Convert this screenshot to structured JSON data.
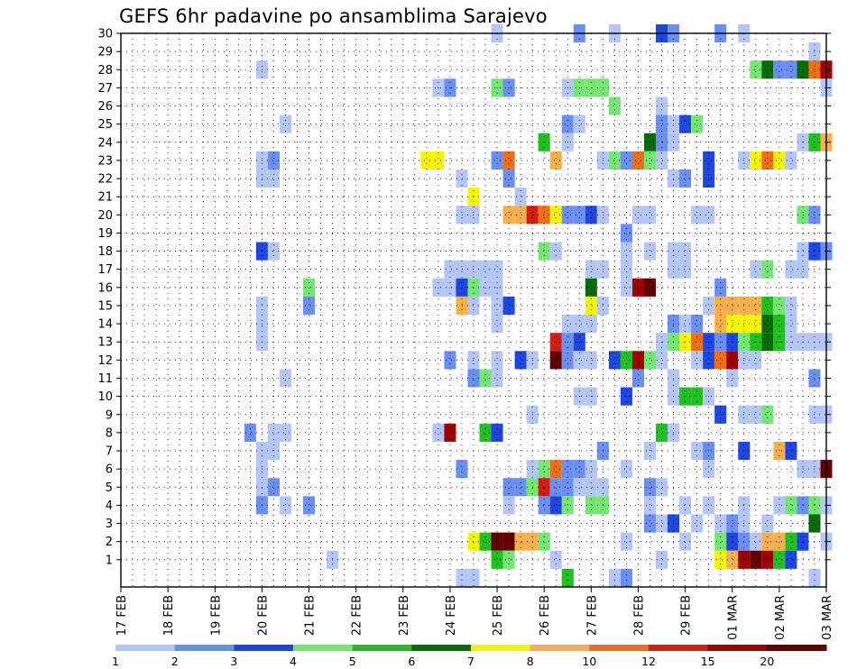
{
  "chart_data": {
    "type": "heatmap",
    "title": "GEFS 6hr padavine po ansamblima Sarajevo",
    "xlabel": "",
    "ylabel": "",
    "x_axis": {
      "label_every": 4,
      "n_steps": 61,
      "ticks": [
        "17 FEB",
        "18 FEB",
        "19 FEB",
        "20 FEB",
        "21 FEB",
        "22 FEB",
        "23 FEB",
        "24 FEB",
        "25 FEB",
        "26 FEB",
        "27 FEB",
        "28 FEB",
        "29 FEB",
        "01 MAR",
        "02 MAR",
        "03 MAR"
      ]
    },
    "y_axis": {
      "range": [
        0,
        30
      ],
      "ticks": [
        1,
        2,
        3,
        4,
        5,
        6,
        7,
        8,
        9,
        10,
        11,
        12,
        13,
        14,
        15,
        16,
        17,
        18,
        19,
        20,
        21,
        22,
        23,
        24,
        25,
        26,
        27,
        28,
        29,
        30
      ]
    },
    "grid": true,
    "legend": {
      "placement": "bottom",
      "bins": [
        {
          "color": "#b4c6f8",
          "label": "1"
        },
        {
          "color": "#6b8ef2",
          "label": "2"
        },
        {
          "color": "#1e46e0",
          "label": "3"
        },
        {
          "color": "#73e673",
          "label": "4"
        },
        {
          "color": "#1fc01f",
          "label": "5"
        },
        {
          "color": "#0a6b0a",
          "label": "6"
        },
        {
          "color": "#f5f500",
          "label": "7"
        },
        {
          "color": "#fab04a",
          "label": "8"
        },
        {
          "color": "#f06e14",
          "label": "10"
        },
        {
          "color": "#d21e14",
          "label": "12"
        },
        {
          "color": "#a00000",
          "label": "15"
        },
        {
          "color": "#650000",
          "label": "20"
        }
      ]
    },
    "cells": [
      [
        30,
        32,
        1
      ],
      [
        30,
        39,
        2
      ],
      [
        30,
        42,
        1
      ],
      [
        30,
        46,
        3
      ],
      [
        30,
        47,
        2
      ],
      [
        30,
        51,
        2
      ],
      [
        30,
        53,
        1
      ],
      [
        29,
        59,
        1
      ],
      [
        28,
        12,
        1
      ],
      [
        28,
        54,
        4
      ],
      [
        28,
        55,
        6
      ],
      [
        28,
        56,
        2
      ],
      [
        28,
        57,
        2
      ],
      [
        28,
        58,
        6
      ],
      [
        28,
        59,
        9
      ],
      [
        28,
        60,
        11
      ],
      [
        27,
        27,
        1
      ],
      [
        27,
        28,
        2
      ],
      [
        27,
        32,
        4
      ],
      [
        27,
        33,
        2
      ],
      [
        27,
        38,
        1
      ],
      [
        27,
        39,
        4
      ],
      [
        27,
        40,
        4
      ],
      [
        27,
        41,
        4
      ],
      [
        27,
        60,
        1
      ],
      [
        26,
        42,
        4
      ],
      [
        26,
        46,
        1
      ],
      [
        25,
        14,
        1
      ],
      [
        25,
        38,
        2
      ],
      [
        25,
        39,
        1
      ],
      [
        25,
        46,
        2
      ],
      [
        25,
        47,
        1
      ],
      [
        25,
        48,
        3
      ],
      [
        25,
        49,
        4
      ],
      [
        24,
        36,
        5
      ],
      [
        24,
        38,
        1
      ],
      [
        24,
        45,
        6
      ],
      [
        24,
        46,
        2
      ],
      [
        24,
        47,
        1
      ],
      [
        24,
        58,
        1
      ],
      [
        24,
        59,
        5
      ],
      [
        24,
        60,
        8
      ],
      [
        23,
        12,
        1
      ],
      [
        23,
        13,
        2
      ],
      [
        23,
        26,
        7
      ],
      [
        23,
        27,
        7
      ],
      [
        23,
        32,
        2
      ],
      [
        23,
        33,
        9
      ],
      [
        23,
        37,
        8
      ],
      [
        23,
        41,
        1
      ],
      [
        23,
        42,
        4
      ],
      [
        23,
        43,
        2
      ],
      [
        23,
        44,
        9
      ],
      [
        23,
        45,
        4
      ],
      [
        23,
        46,
        1
      ],
      [
        23,
        50,
        3
      ],
      [
        23,
        53,
        1
      ],
      [
        23,
        54,
        7
      ],
      [
        23,
        55,
        9
      ],
      [
        23,
        56,
        7
      ],
      [
        23,
        57,
        1
      ],
      [
        22,
        12,
        1
      ],
      [
        22,
        13,
        1
      ],
      [
        22,
        29,
        1
      ],
      [
        22,
        33,
        2
      ],
      [
        22,
        47,
        1
      ],
      [
        22,
        48,
        2
      ],
      [
        22,
        50,
        3
      ],
      [
        21,
        30,
        7
      ],
      [
        21,
        34,
        1
      ],
      [
        20,
        29,
        1
      ],
      [
        20,
        30,
        1
      ],
      [
        20,
        33,
        8
      ],
      [
        20,
        34,
        8
      ],
      [
        20,
        35,
        10
      ],
      [
        20,
        36,
        9
      ],
      [
        20,
        37,
        7
      ],
      [
        20,
        38,
        2
      ],
      [
        20,
        39,
        2
      ],
      [
        20,
        40,
        3
      ],
      [
        20,
        41,
        1
      ],
      [
        20,
        44,
        1
      ],
      [
        20,
        45,
        1
      ],
      [
        20,
        49,
        1
      ],
      [
        20,
        50,
        1
      ],
      [
        20,
        58,
        4
      ],
      [
        20,
        59,
        2
      ],
      [
        19,
        43,
        2
      ],
      [
        18,
        12,
        3
      ],
      [
        18,
        13,
        1
      ],
      [
        18,
        36,
        4
      ],
      [
        18,
        37,
        1
      ],
      [
        18,
        43,
        1
      ],
      [
        18,
        45,
        1
      ],
      [
        18,
        47,
        1
      ],
      [
        18,
        48,
        1
      ],
      [
        18,
        58,
        1
      ],
      [
        18,
        59,
        3
      ],
      [
        18,
        60,
        2
      ],
      [
        17,
        28,
        1
      ],
      [
        17,
        29,
        1
      ],
      [
        17,
        30,
        1
      ],
      [
        17,
        31,
        1
      ],
      [
        17,
        32,
        1
      ],
      [
        17,
        40,
        1
      ],
      [
        17,
        41,
        1
      ],
      [
        17,
        43,
        1
      ],
      [
        17,
        47,
        1
      ],
      [
        17,
        48,
        1
      ],
      [
        17,
        54,
        1
      ],
      [
        17,
        55,
        4
      ],
      [
        17,
        57,
        1
      ],
      [
        17,
        58,
        1
      ],
      [
        16,
        16,
        4
      ],
      [
        16,
        27,
        1
      ],
      [
        16,
        28,
        1
      ],
      [
        16,
        29,
        3
      ],
      [
        16,
        30,
        4
      ],
      [
        16,
        31,
        1
      ],
      [
        16,
        32,
        1
      ],
      [
        16,
        40,
        6
      ],
      [
        16,
        43,
        1
      ],
      [
        16,
        44,
        11
      ],
      [
        16,
        45,
        12
      ],
      [
        16,
        51,
        2
      ],
      [
        15,
        16,
        2
      ],
      [
        15,
        12,
        1
      ],
      [
        15,
        29,
        8
      ],
      [
        15,
        30,
        1
      ],
      [
        15,
        32,
        1
      ],
      [
        15,
        33,
        3
      ],
      [
        15,
        40,
        7
      ],
      [
        15,
        41,
        1
      ],
      [
        15,
        50,
        1
      ],
      [
        15,
        51,
        8
      ],
      [
        15,
        52,
        8
      ],
      [
        15,
        53,
        8
      ],
      [
        15,
        54,
        8
      ],
      [
        15,
        55,
        5
      ],
      [
        15,
        56,
        4
      ],
      [
        15,
        57,
        1
      ],
      [
        14,
        12,
        1
      ],
      [
        14,
        32,
        1
      ],
      [
        14,
        38,
        1
      ],
      [
        14,
        39,
        1
      ],
      [
        14,
        40,
        1
      ],
      [
        14,
        47,
        2
      ],
      [
        14,
        48,
        1
      ],
      [
        14,
        49,
        2
      ],
      [
        14,
        51,
        8
      ],
      [
        14,
        52,
        7
      ],
      [
        14,
        53,
        7
      ],
      [
        14,
        54,
        7
      ],
      [
        14,
        55,
        6
      ],
      [
        14,
        56,
        5
      ],
      [
        14,
        57,
        1
      ],
      [
        13,
        12,
        1
      ],
      [
        13,
        37,
        10
      ],
      [
        13,
        38,
        2
      ],
      [
        13,
        39,
        3
      ],
      [
        13,
        46,
        1
      ],
      [
        13,
        47,
        4
      ],
      [
        13,
        48,
        7
      ],
      [
        13,
        49,
        9
      ],
      [
        13,
        50,
        3
      ],
      [
        13,
        51,
        2
      ],
      [
        13,
        52,
        3
      ],
      [
        13,
        53,
        4
      ],
      [
        13,
        54,
        5
      ],
      [
        13,
        55,
        6
      ],
      [
        13,
        56,
        5
      ],
      [
        13,
        57,
        1
      ],
      [
        13,
        58,
        1
      ],
      [
        13,
        59,
        1
      ],
      [
        13,
        60,
        1
      ],
      [
        12,
        28,
        2
      ],
      [
        12,
        30,
        1
      ],
      [
        12,
        32,
        1
      ],
      [
        12,
        34,
        3
      ],
      [
        12,
        35,
        1
      ],
      [
        12,
        37,
        12
      ],
      [
        12,
        38,
        2
      ],
      [
        12,
        39,
        1
      ],
      [
        12,
        40,
        1
      ],
      [
        12,
        42,
        3
      ],
      [
        12,
        43,
        5
      ],
      [
        12,
        44,
        11
      ],
      [
        12,
        45,
        4
      ],
      [
        12,
        46,
        1
      ],
      [
        12,
        49,
        1
      ],
      [
        12,
        50,
        3
      ],
      [
        12,
        51,
        9
      ],
      [
        12,
        52,
        11
      ],
      [
        12,
        53,
        1
      ],
      [
        12,
        54,
        1
      ],
      [
        11,
        14,
        1
      ],
      [
        11,
        30,
        2
      ],
      [
        11,
        31,
        4
      ],
      [
        11,
        32,
        1
      ],
      [
        11,
        44,
        2
      ],
      [
        11,
        47,
        1
      ],
      [
        11,
        52,
        1
      ],
      [
        11,
        59,
        2
      ],
      [
        10,
        39,
        1
      ],
      [
        10,
        40,
        1
      ],
      [
        10,
        43,
        3
      ],
      [
        10,
        47,
        1
      ],
      [
        10,
        48,
        5
      ],
      [
        10,
        49,
        5
      ],
      [
        10,
        50,
        1
      ],
      [
        9,
        35,
        1
      ],
      [
        9,
        51,
        3
      ],
      [
        9,
        53,
        1
      ],
      [
        9,
        54,
        1
      ],
      [
        9,
        55,
        4
      ],
      [
        9,
        59,
        1
      ],
      [
        9,
        60,
        1
      ],
      [
        8,
        11,
        2
      ],
      [
        8,
        13,
        1
      ],
      [
        8,
        14,
        1
      ],
      [
        8,
        27,
        1
      ],
      [
        8,
        28,
        11
      ],
      [
        8,
        31,
        5
      ],
      [
        8,
        32,
        3
      ],
      [
        8,
        46,
        5
      ],
      [
        8,
        47,
        1
      ],
      [
        7,
        12,
        1
      ],
      [
        7,
        13,
        1
      ],
      [
        7,
        41,
        2
      ],
      [
        7,
        45,
        1
      ],
      [
        7,
        49,
        1
      ],
      [
        7,
        50,
        2
      ],
      [
        7,
        53,
        3
      ],
      [
        7,
        56,
        8
      ],
      [
        7,
        57,
        3
      ],
      [
        6,
        12,
        1
      ],
      [
        6,
        29,
        2
      ],
      [
        6,
        35,
        1
      ],
      [
        6,
        36,
        4
      ],
      [
        6,
        37,
        9
      ],
      [
        6,
        38,
        2
      ],
      [
        6,
        39,
        2
      ],
      [
        6,
        40,
        1
      ],
      [
        6,
        43,
        1
      ],
      [
        6,
        50,
        1
      ],
      [
        6,
        58,
        1
      ],
      [
        6,
        59,
        1
      ],
      [
        6,
        60,
        12
      ],
      [
        5,
        12,
        1
      ],
      [
        5,
        13,
        2
      ],
      [
        5,
        33,
        2
      ],
      [
        5,
        34,
        2
      ],
      [
        5,
        35,
        4
      ],
      [
        5,
        36,
        10
      ],
      [
        5,
        37,
        2
      ],
      [
        5,
        38,
        2
      ],
      [
        5,
        39,
        1
      ],
      [
        5,
        40,
        1
      ],
      [
        5,
        41,
        1
      ],
      [
        5,
        45,
        2
      ],
      [
        5,
        46,
        1
      ],
      [
        4,
        12,
        2
      ],
      [
        4,
        14,
        1
      ],
      [
        4,
        16,
        2
      ],
      [
        4,
        33,
        1
      ],
      [
        4,
        36,
        2
      ],
      [
        4,
        37,
        3
      ],
      [
        4,
        38,
        4
      ],
      [
        4,
        40,
        4
      ],
      [
        4,
        41,
        4
      ],
      [
        4,
        45,
        1
      ],
      [
        4,
        48,
        1
      ],
      [
        4,
        50,
        1
      ],
      [
        4,
        53,
        1
      ],
      [
        4,
        56,
        1
      ],
      [
        4,
        57,
        4
      ],
      [
        4,
        58,
        2
      ],
      [
        4,
        59,
        4
      ],
      [
        4,
        60,
        1
      ],
      [
        3,
        45,
        2
      ],
      [
        3,
        46,
        1
      ],
      [
        3,
        47,
        3
      ],
      [
        3,
        49,
        1
      ],
      [
        3,
        51,
        1
      ],
      [
        3,
        52,
        2
      ],
      [
        3,
        53,
        1
      ],
      [
        3,
        55,
        1
      ],
      [
        3,
        59,
        6
      ],
      [
        2,
        30,
        7
      ],
      [
        2,
        31,
        5
      ],
      [
        2,
        32,
        12
      ],
      [
        2,
        33,
        12
      ],
      [
        2,
        34,
        8
      ],
      [
        2,
        35,
        8
      ],
      [
        2,
        36,
        4
      ],
      [
        2,
        43,
        1
      ],
      [
        2,
        48,
        1
      ],
      [
        2,
        51,
        4
      ],
      [
        2,
        52,
        3
      ],
      [
        2,
        53,
        2
      ],
      [
        2,
        54,
        1
      ],
      [
        2,
        55,
        8
      ],
      [
        2,
        56,
        8
      ],
      [
        2,
        57,
        5
      ],
      [
        2,
        58,
        3
      ],
      [
        2,
        60,
        1
      ],
      [
        1,
        18,
        1
      ],
      [
        1,
        32,
        5
      ],
      [
        1,
        33,
        4
      ],
      [
        1,
        37,
        1
      ],
      [
        1,
        46,
        1
      ],
      [
        1,
        51,
        7
      ],
      [
        1,
        52,
        8
      ],
      [
        1,
        53,
        11
      ],
      [
        1,
        54,
        12
      ],
      [
        1,
        55,
        11
      ],
      [
        1,
        56,
        5
      ],
      [
        1,
        57,
        3
      ],
      [
        0,
        29,
        1
      ],
      [
        0,
        30,
        1
      ],
      [
        0,
        38,
        5
      ],
      [
        0,
        42,
        1
      ],
      [
        0,
        43,
        2
      ],
      [
        0,
        59,
        1
      ]
    ]
  }
}
